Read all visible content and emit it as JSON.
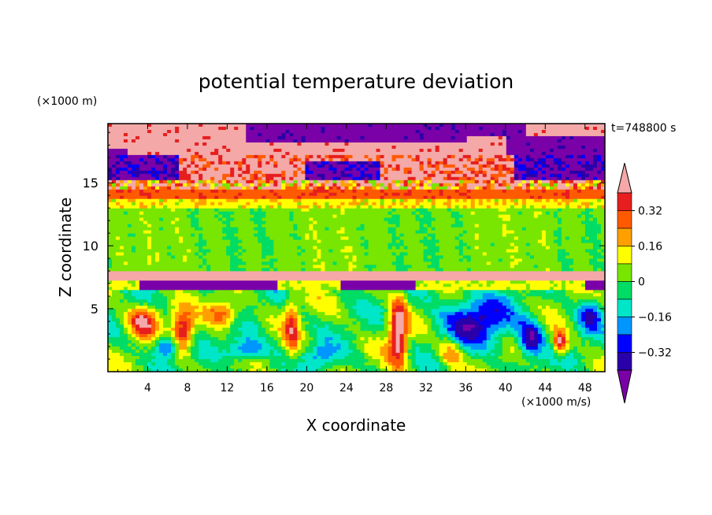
{
  "chart_data": {
    "type": "heatmap",
    "title": "potential temperature deviation",
    "xlabel": "X coordinate",
    "ylabel": "Z coordinate",
    "x_unit": "(×1000 m/s)",
    "y_unit": "(×1000 m)",
    "time_label": "t=748800 s",
    "xlim": [
      0,
      50
    ],
    "ylim": [
      0,
      19.7
    ],
    "x_ticks": [
      4,
      8,
      12,
      16,
      20,
      24,
      28,
      32,
      36,
      40,
      44,
      48
    ],
    "y_ticks": [
      5,
      10,
      15
    ],
    "colorbar": {
      "levels": [
        -0.4,
        -0.32,
        -0.24,
        -0.16,
        -0.08,
        0,
        0.08,
        0.16,
        0.24,
        0.32,
        0.4
      ],
      "colors": [
        "#7a00a8",
        "#2a00a8",
        "#0000ff",
        "#0096ff",
        "#00e6c8",
        "#00dc64",
        "#78e600",
        "#ffff00",
        "#ffa000",
        "#ff5a00",
        "#e61e1e",
        "#f4a8a8"
      ],
      "tick_labels": [
        "0.32",
        "0.16",
        "0",
        "−0.16",
        "−0.32"
      ],
      "tick_values": [
        0.32,
        0.16,
        0,
        -0.16,
        -0.32
      ],
      "extend": "both"
    }
  }
}
